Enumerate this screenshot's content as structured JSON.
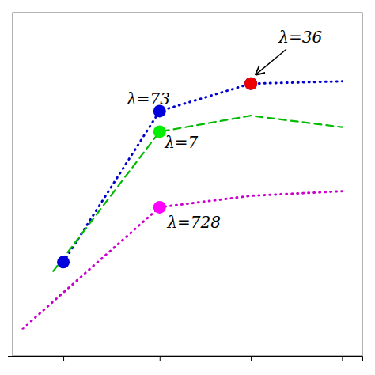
{
  "chart_data": {
    "type": "line",
    "xlim": [
      -0.7,
      6.2
    ],
    "ylim": [
      -1.5,
      6.0
    ],
    "xticks": [
      0.3,
      2.2,
      4.0,
      5.8
    ],
    "yticks": [],
    "tick_labels": false,
    "series": [
      {
        "color": "#0000cc",
        "line_style": "dotted",
        "x": [
          0.3,
          2.2,
          4.0,
          5.8
        ],
        "values": [
          0.55,
          3.85,
          4.45,
          4.5
        ]
      },
      {
        "color": "#00bb00",
        "line_style": "dashed",
        "x": [
          0.1,
          2.2,
          4.0,
          5.8
        ],
        "values": [
          0.35,
          3.4,
          3.75,
          3.5
        ]
      },
      {
        "color": "#cc00cc",
        "line_style": "dotted",
        "x": [
          -0.5,
          2.2,
          4.0,
          5.8
        ],
        "values": [
          -0.9,
          1.75,
          2.0,
          2.1
        ]
      },
      {
        "type": "scatter",
        "color": "#0000dd",
        "x": [
          0.3,
          2.2,
          4.0
        ],
        "values": [
          0.55,
          3.85,
          4.45
        ]
      },
      {
        "type": "scatter",
        "color": "#00ee00",
        "x": [
          2.2
        ],
        "values": [
          3.4
        ]
      },
      {
        "type": "scatter",
        "color": "#ff00ff",
        "x": [
          2.2
        ],
        "values": [
          1.75
        ]
      },
      {
        "type": "scatter",
        "color": "#ee0000",
        "x": [
          4.0
        ],
        "values": [
          4.45
        ]
      }
    ],
    "annotations": [
      {
        "text": "λ=73",
        "x": 1.55,
        "y": 4.0
      },
      {
        "text": "λ=7",
        "x": 2.3,
        "y": 3.05
      },
      {
        "text": "λ=728",
        "x": 2.35,
        "y": 1.3
      },
      {
        "text": "λ=36",
        "x": 4.55,
        "y": 5.35,
        "arrow_from": [
          4.7,
          5.2
        ],
        "arrow_to": [
          4.1,
          4.65
        ]
      }
    ]
  }
}
